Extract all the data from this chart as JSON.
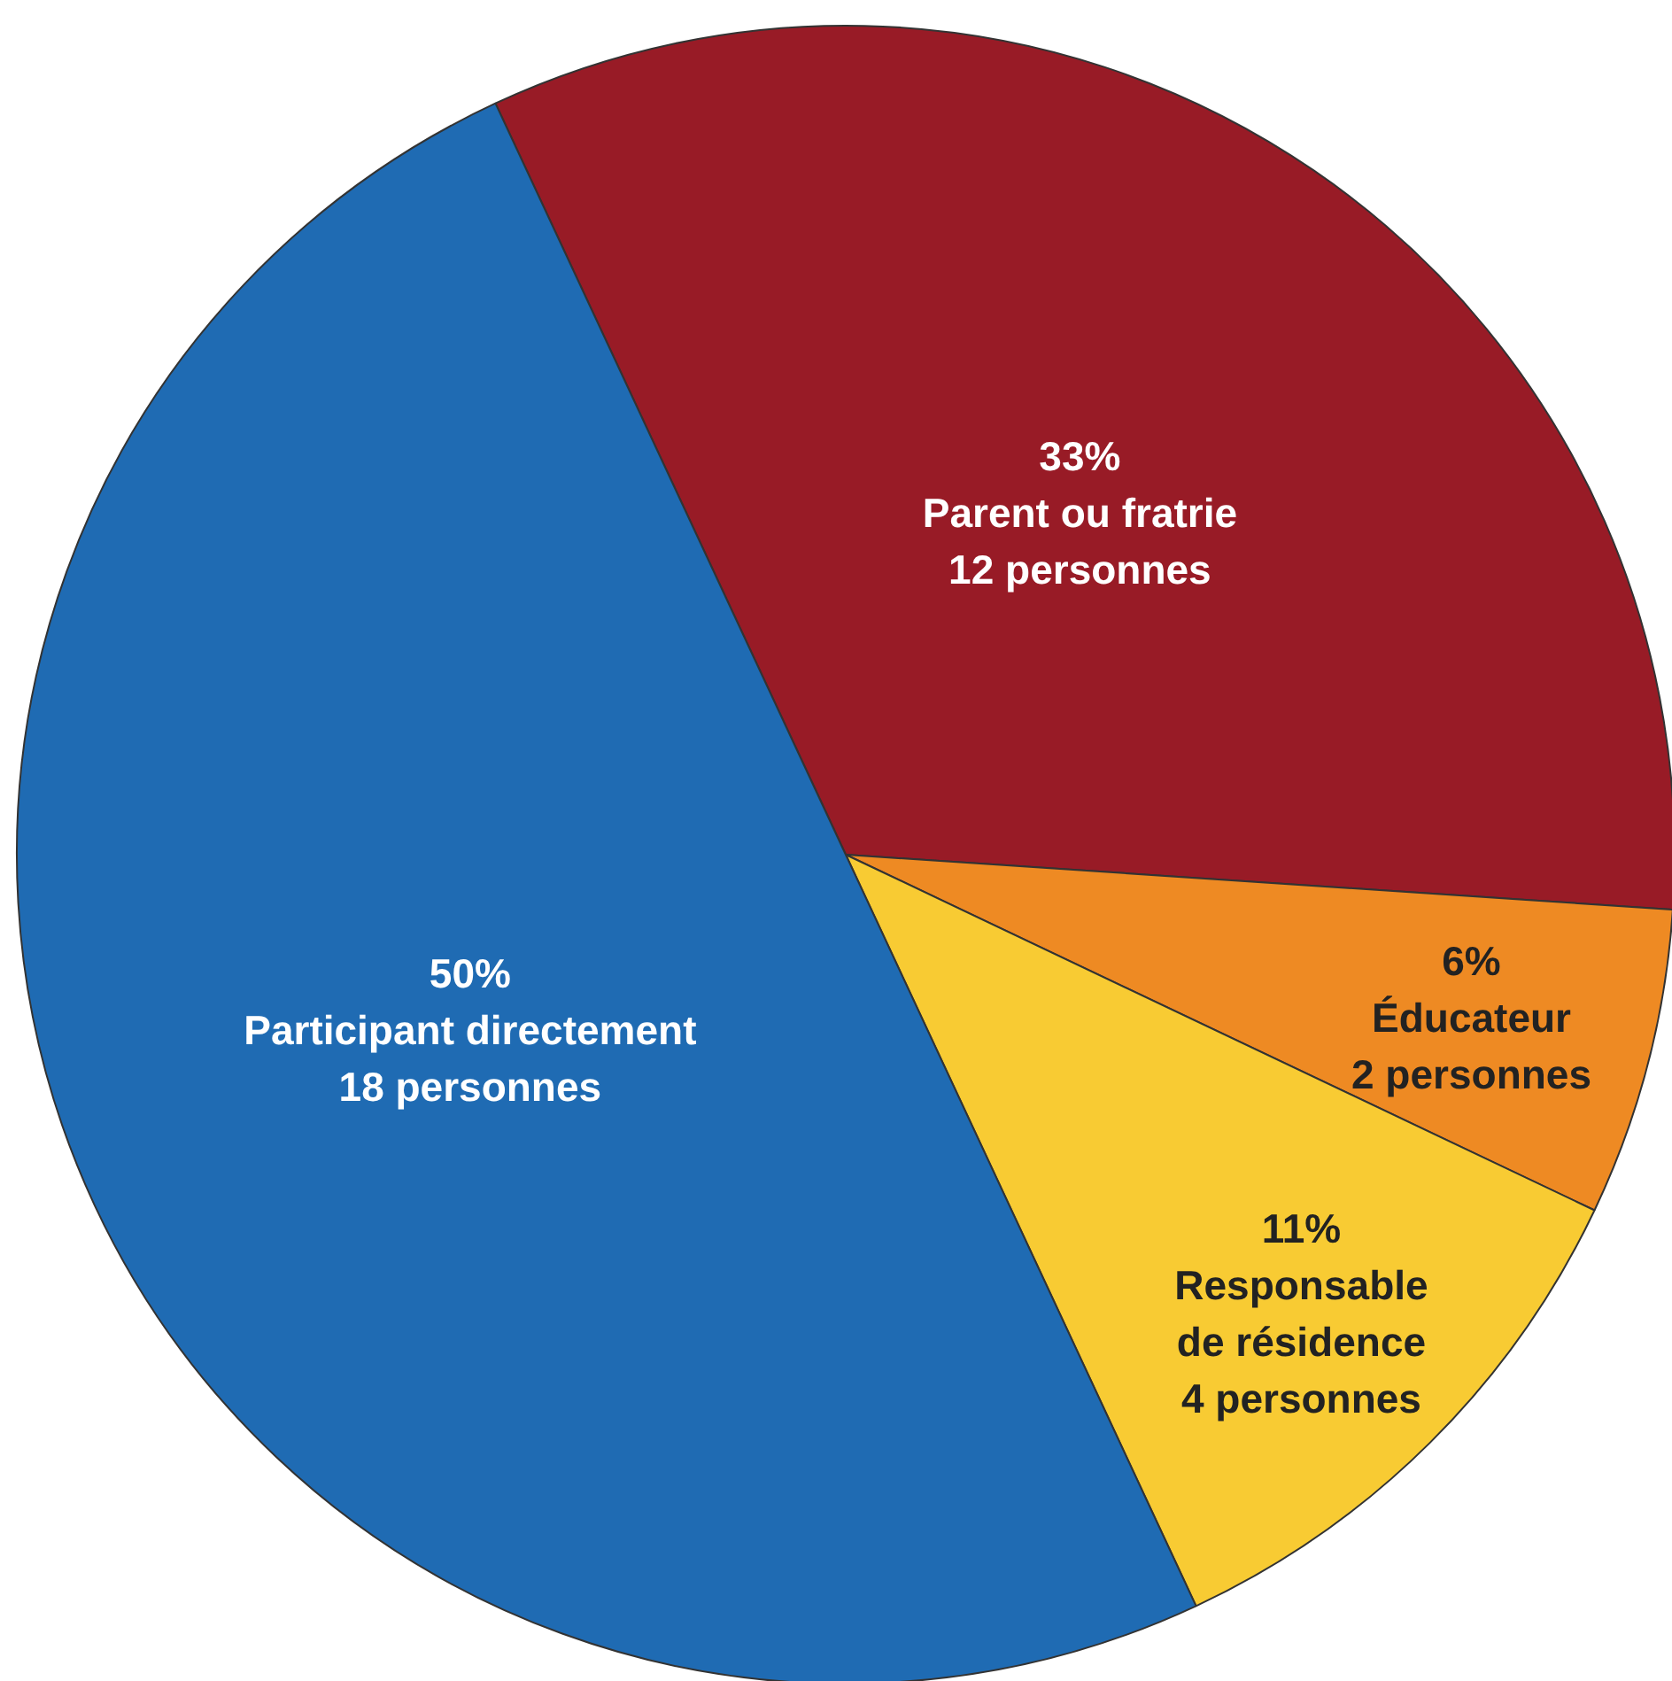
{
  "chart_data": {
    "type": "pie",
    "categories": [
      "Parent ou fratrie\n12 personnes",
      "Éducateur\n2 personnes",
      "Responsable\nde résidence\n4 personnes",
      "Participant directement\n18 personnes"
    ],
    "values": [
      33,
      6,
      11,
      50
    ],
    "value_labels": [
      "33%",
      "6%",
      "11%",
      "50%"
    ],
    "colors": [
      "#981b26",
      "#ee8a23",
      "#f8cb33",
      "#1f6bb3"
    ]
  }
}
